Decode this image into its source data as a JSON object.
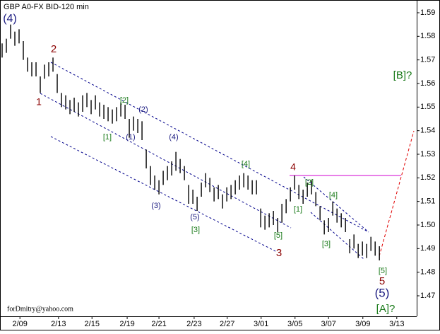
{
  "chart_data": {
    "type": "hlbar",
    "title": "GBP A0-FX BID-120 min",
    "watermark": "forDmitry@yahoo.com",
    "color": "#000000",
    "xlim": [
      -0.5,
      97.8
    ],
    "xticks": [
      {
        "value": 4.2,
        "label": "2/09"
      },
      {
        "value": 13.3,
        "label": "2/13"
      },
      {
        "value": 21.2,
        "label": "2/15"
      },
      {
        "value": 29.5,
        "label": "2/19"
      },
      {
        "value": 37,
        "label": "2/21"
      },
      {
        "value": 45.3,
        "label": "2/23"
      },
      {
        "value": 53.1,
        "label": "2/27"
      },
      {
        "value": 61.1,
        "label": "3/01"
      },
      {
        "value": 69.1,
        "label": "3/05"
      },
      {
        "value": 77,
        "label": "3/07"
      },
      {
        "value": 85.1,
        "label": "3/09"
      },
      {
        "value": 93.1,
        "label": "3/13"
      }
    ],
    "ylim": [
      1.4613,
      1.5954
    ],
    "yticks": [
      1.47,
      1.48,
      1.49,
      {
        "value": 1.5,
        "label": "1.50"
      },
      1.51,
      1.52,
      1.53,
      1.54,
      1.55,
      1.56,
      1.57,
      1.58,
      1.59
    ],
    "high": [
      1.577,
      1.579,
      1.585,
      1.582,
      1.583,
      1.578,
      1.571,
      1.569,
      1.569,
      1.563,
      1.568,
      1.569,
      1.571,
      1.564,
      1.556,
      1.555,
      1.553,
      1.554,
      1.552,
      1.555,
      1.556,
      1.553,
      1.555,
      1.552,
      1.551,
      1.55,
      1.549,
      1.55,
      1.552,
      1.551,
      1.545,
      1.546,
      1.545,
      1.544,
      1.532,
      1.525,
      1.521,
      1.519,
      1.523,
      1.525,
      1.527,
      1.531,
      1.528,
      1.525,
      1.517,
      1.515,
      1.512,
      1.518,
      1.522,
      1.52,
      1.516,
      1.517,
      1.513,
      1.516,
      1.517,
      1.519,
      1.521,
      1.522,
      1.521,
      1.519,
      1.519,
      1.507,
      1.504,
      1.505,
      1.506,
      1.503,
      1.509,
      1.511,
      1.516,
      1.521,
      1.517,
      1.515,
      1.518,
      1.519,
      1.514,
      1.508,
      1.502,
      1.503,
      1.51,
      1.507,
      1.505,
      1.503,
      1.494,
      1.496,
      1.492,
      1.493,
      1.492,
      1.495,
      1.493,
      1.491
    ],
    "low": [
      1.571,
      1.573,
      1.579,
      1.576,
      1.577,
      1.57,
      1.565,
      1.563,
      1.563,
      1.556,
      1.562,
      1.563,
      1.565,
      1.556,
      1.55,
      1.549,
      1.547,
      1.548,
      1.546,
      1.548,
      1.55,
      1.547,
      1.549,
      1.546,
      1.545,
      1.544,
      1.543,
      1.544,
      1.546,
      1.545,
      1.537,
      1.54,
      1.539,
      1.536,
      1.524,
      1.517,
      1.515,
      1.513,
      1.517,
      1.519,
      1.521,
      1.523,
      1.522,
      1.519,
      1.509,
      1.509,
      1.506,
      1.512,
      1.516,
      1.514,
      1.51,
      1.511,
      1.507,
      1.51,
      1.511,
      1.513,
      1.515,
      1.516,
      1.515,
      1.513,
      1.513,
      1.499,
      1.498,
      1.499,
      1.5,
      1.497,
      1.501,
      1.505,
      1.51,
      1.515,
      1.511,
      1.509,
      1.512,
      1.513,
      1.508,
      1.502,
      1.496,
      1.497,
      1.504,
      1.501,
      1.499,
      1.497,
      1.488,
      1.49,
      1.486,
      1.487,
      1.486,
      1.489,
      1.487,
      1.485
    ],
    "annotations": [
      "(4)",
      "2",
      "1",
      "[2]",
      "(2)",
      "[1]",
      "(1)",
      "(4)",
      "(3)",
      "(5)",
      "[3]",
      "[4]",
      "4",
      "[2]",
      "[1]",
      "[4]",
      "[5]",
      "[3]",
      "3",
      "[5]",
      "5",
      "(5)",
      "[A]?",
      "[B]?"
    ]
  }
}
